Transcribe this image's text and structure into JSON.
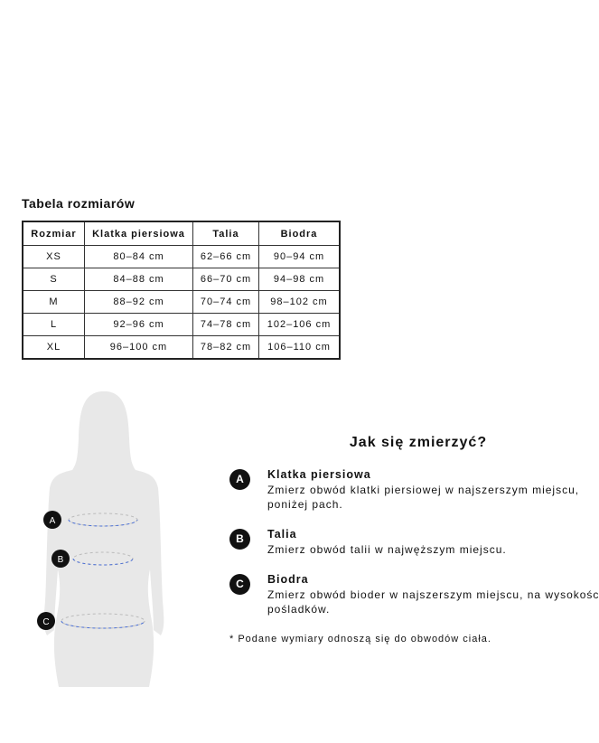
{
  "table": {
    "title": "Tabela rozmiarów",
    "headers": [
      "Rozmiar",
      "Klatka piersiowa",
      "Talia",
      "Biodra"
    ],
    "rows": [
      [
        "XS",
        "80–84 cm",
        "62–66 cm",
        "90–94 cm"
      ],
      [
        "S",
        "84–88 cm",
        "66–70 cm",
        "94–98 cm"
      ],
      [
        "M",
        "88–92 cm",
        "70–74 cm",
        "98–102 cm"
      ],
      [
        "L",
        "92–96 cm",
        "74–78 cm",
        "102–106 cm"
      ],
      [
        "XL",
        "96–100 cm",
        "78–82 cm",
        "106–110 cm"
      ]
    ]
  },
  "guide": {
    "title": "Jak się zmierzyć?",
    "items": [
      {
        "badge": "A",
        "title": "Klatka piersiowa",
        "text1": "Zmierz obwód klatki piersiowej w najszerszym miejscu,",
        "text2": "poniżej pach."
      },
      {
        "badge": "B",
        "title": "Talia",
        "text1": "Zmierz obwód talii w najwęższym miejscu.",
        "text2": ""
      },
      {
        "badge": "C",
        "title": "Biodra",
        "text1": "Zmierz obwód bioder w najszerszym miejscu, na wysokości",
        "text2": "pośladków."
      }
    ],
    "note": "* Podane wymiary odnoszą się do obwodów ciała."
  },
  "colors": {
    "silhouette": "#e8e8e8",
    "dash": "#4a6fd6"
  }
}
